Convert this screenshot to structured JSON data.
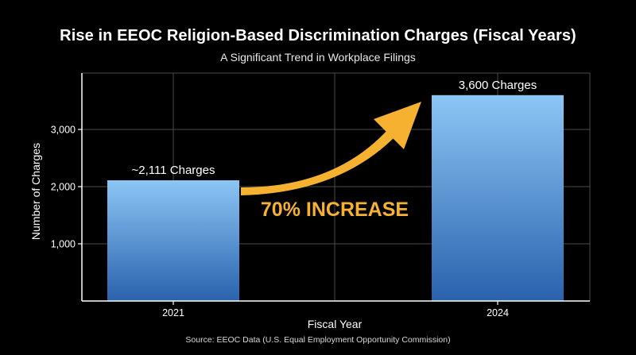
{
  "chart_data": {
    "type": "bar",
    "title": "Rise in EEOC Religion-Based Discrimination Charges (Fiscal Years)",
    "subtitle": "A Significant Trend in Workplace Filings",
    "xlabel": "Fiscal Year",
    "ylabel": "Number of Charges",
    "categories": [
      "2021",
      "2024"
    ],
    "values": [
      2111,
      3600
    ],
    "data_labels": [
      "~2,111 Charges",
      "3,600 Charges"
    ],
    "yticks": [
      1000,
      2000,
      3000
    ],
    "ytick_labels": [
      "1,000",
      "2,000",
      "3,000"
    ],
    "ylim": [
      0,
      4000
    ],
    "grid": true,
    "annotation": "70% INCREASE",
    "source": "Source: EEOC Data (U.S. Equal Employment Opportunity Commission)",
    "colors": {
      "bar_top": "#8cc6f5",
      "bar_bottom": "#2a62ad",
      "arrow": "#f7b130",
      "annotation": "#f7b130",
      "grid": "#4a4a4a"
    }
  }
}
